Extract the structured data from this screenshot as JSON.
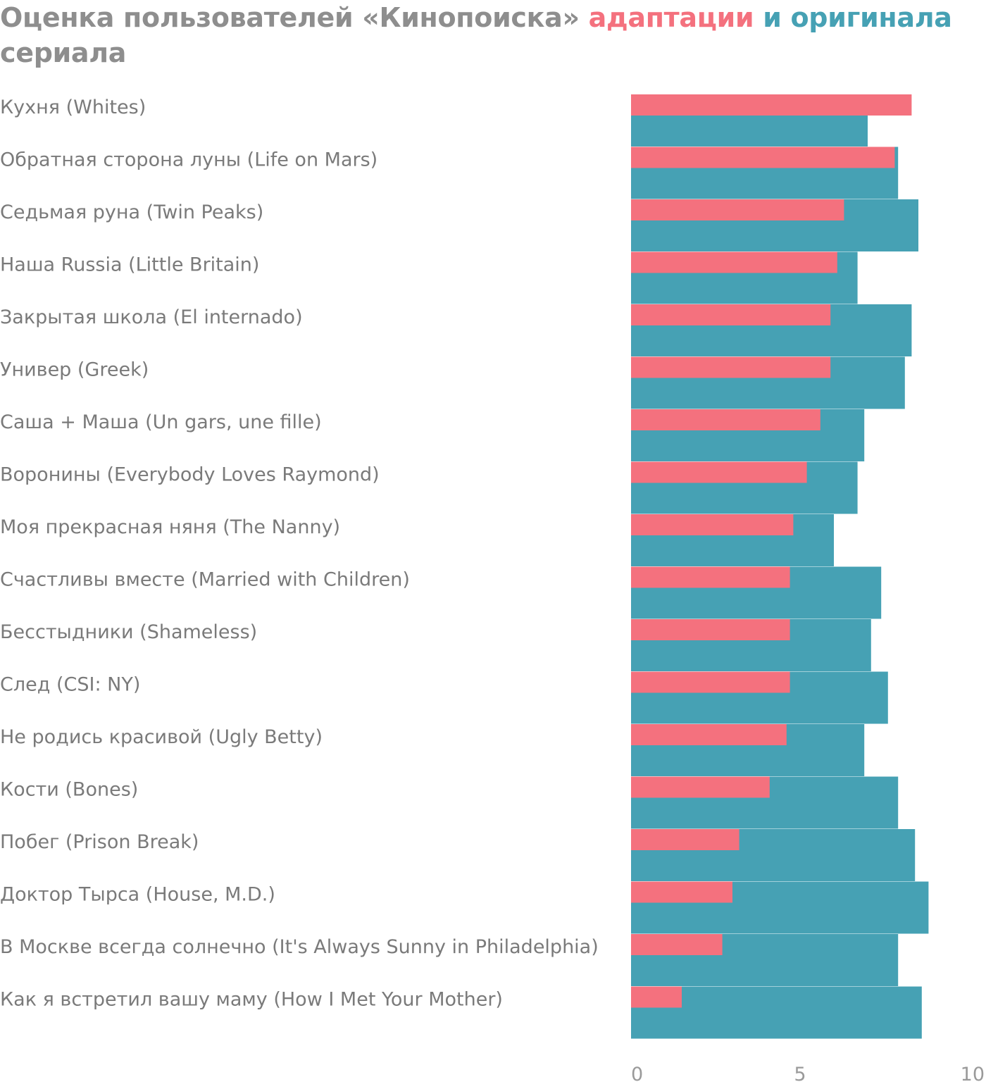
{
  "chart_data": {
    "type": "bar",
    "orientation": "horizontal",
    "title_parts": {
      "lead": "Оценка пользователей «Кинопоиска»",
      "adaptation": "адаптации",
      "joiner": "и",
      "original": "оригинала",
      "tail": "сериала"
    },
    "categories": [
      "Кухня (Whites)",
      "Обратная сторона луны (Life on Mars)",
      "Седьмая руна (Twin Peaks)",
      "Наша Russia (Little Britain)",
      "Закрытая школа (El internado)",
      "Универ (Greek)",
      "Саша + Маша (Un gars, une fille)",
      "Воронины (Everybody Loves Raymond)",
      "Моя прекрасная няня (The Nanny)",
      "Счастливы вместе (Married with Children)",
      "Бесстыдники (Shameless)",
      "След (CSI: NY)",
      "Не родись красивой (Ugly Betty)",
      "Кости (Bones)",
      "Побег (Prison Break)",
      "Доктор Тырса (House, M.D.)",
      "В Москве всегда солнечно (It's Always Sunny in Philadelphia)",
      "Как я встретил вашу маму (How I Met Your Mother)"
    ],
    "series": [
      {
        "key": "adaptation",
        "color": "#f4717e",
        "values": [
          8.3,
          7.8,
          6.3,
          6.1,
          5.9,
          5.9,
          5.6,
          5.2,
          4.8,
          4.7,
          4.7,
          4.7,
          4.6,
          4.1,
          3.2,
          3.0,
          2.7,
          1.5
        ]
      },
      {
        "key": "original",
        "color": "#46a1b4",
        "values": [
          7.0,
          7.9,
          8.5,
          6.7,
          8.3,
          8.1,
          6.9,
          6.7,
          6.0,
          7.4,
          7.1,
          7.6,
          6.9,
          7.9,
          8.4,
          8.8,
          7.9,
          8.6
        ]
      }
    ],
    "xlim": [
      0,
      10
    ],
    "xticks": [
      "0",
      "5",
      "10"
    ],
    "title_color": "#8e8e8e",
    "grid": false,
    "legend": "none"
  }
}
